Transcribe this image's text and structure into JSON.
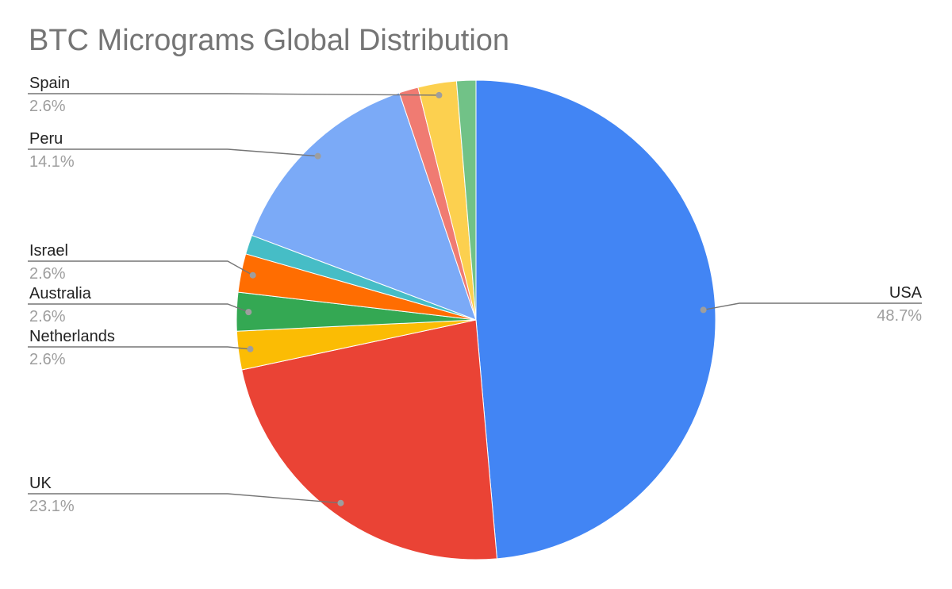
{
  "chart_data": {
    "type": "pie",
    "title": "BTC Micrograms Global Distribution",
    "slices": [
      {
        "label": "USA",
        "value": 48.7,
        "color": "#4285f4",
        "labeled": true,
        "pct_text": "48.7%"
      },
      {
        "label": "UK",
        "value": 23.1,
        "color": "#ea4335",
        "labeled": true,
        "pct_text": "23.1%"
      },
      {
        "label": "Netherlands",
        "value": 2.6,
        "color": "#fbbc04",
        "labeled": true,
        "pct_text": "2.6%"
      },
      {
        "label": "Australia",
        "value": 2.6,
        "color": "#34a853",
        "labeled": true,
        "pct_text": "2.6%"
      },
      {
        "label": "Israel",
        "value": 2.6,
        "color": "#ff6d01",
        "labeled": true,
        "pct_text": "2.6%"
      },
      {
        "label": "",
        "value": 1.3,
        "color": "#46bdc6",
        "labeled": false
      },
      {
        "label": "Peru",
        "value": 14.1,
        "color": "#7baaf7",
        "labeled": true,
        "pct_text": "14.1%"
      },
      {
        "label": "",
        "value": 1.3,
        "color": "#f07b72",
        "labeled": false
      },
      {
        "label": "Spain",
        "value": 2.6,
        "color": "#fcd04f",
        "labeled": true,
        "pct_text": "2.6%"
      },
      {
        "label": "",
        "value": 1.3,
        "color": "#71c287",
        "labeled": false
      }
    ],
    "legend": "none"
  }
}
